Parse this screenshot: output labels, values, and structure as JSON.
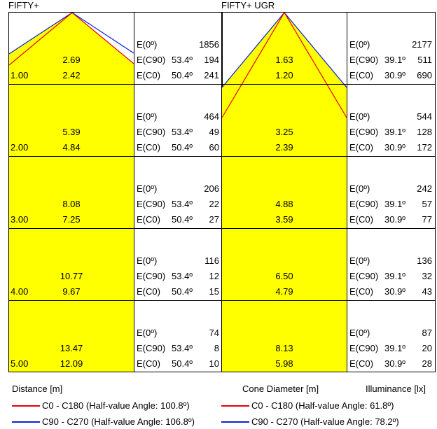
{
  "panels": [
    {
      "title": "FIFTY+",
      "rows": [
        {
          "distance": "1.00",
          "cone_c90": "2.69",
          "cone_c0": "2.42",
          "e0": "1856",
          "e_c90_angle": "53.4º",
          "e_c90": "194",
          "e_c0_angle": "50.4º",
          "e_c0": "241"
        },
        {
          "distance": "2.00",
          "cone_c90": "5.39",
          "cone_c0": "4.84",
          "e0": "464",
          "e_c90_angle": "53.4º",
          "e_c90": "49",
          "e_c0_angle": "50.4º",
          "e_c0": "60"
        },
        {
          "distance": "3.00",
          "cone_c90": "8.08",
          "cone_c0": "7.25",
          "e0": "206",
          "e_c90_angle": "53.4º",
          "e_c90": "22",
          "e_c0_angle": "50.4º",
          "e_c0": "27"
        },
        {
          "distance": "4.00",
          "cone_c90": "10.77",
          "cone_c0": "9.67",
          "e0": "116",
          "e_c90_angle": "53.4º",
          "e_c90": "12",
          "e_c0_angle": "50.4º",
          "e_c0": "15"
        },
        {
          "distance": "5.00",
          "cone_c90": "13.47",
          "cone_c0": "12.09",
          "e0": "74",
          "e_c90_angle": "53.4º",
          "e_c90": "8",
          "e_c0_angle": "50.4º",
          "e_c0": "10"
        }
      ]
    },
    {
      "title": "FIFTY+ UGR",
      "rows": [
        {
          "distance": "",
          "cone_c90": "1.63",
          "cone_c0": "1.20",
          "e0": "2177",
          "e_c90_angle": "39.1º",
          "e_c90": "511",
          "e_c0_angle": "30.9º",
          "e_c0": "690"
        },
        {
          "distance": "",
          "cone_c90": "3.25",
          "cone_c0": "2.39",
          "e0": "544",
          "e_c90_angle": "39.1º",
          "e_c90": "128",
          "e_c0_angle": "30.9º",
          "e_c0": "172"
        },
        {
          "distance": "",
          "cone_c90": "4.88",
          "cone_c0": "3.59",
          "e0": "242",
          "e_c90_angle": "39.1º",
          "e_c90": "57",
          "e_c0_angle": "30.9º",
          "e_c0": "77"
        },
        {
          "distance": "",
          "cone_c90": "6.50",
          "cone_c0": "4.79",
          "e0": "136",
          "e_c90_angle": "39.1º",
          "e_c90": "32",
          "e_c0_angle": "30.9º",
          "e_c0": "43"
        },
        {
          "distance": "",
          "cone_c90": "8.13",
          "cone_c0": "5.98",
          "e0": "87",
          "e_c90_angle": "39.1º",
          "e_c90": "20",
          "e_c0_angle": "30.9º",
          "e_c0": "28"
        }
      ]
    }
  ],
  "labels": {
    "e0": "E(0º)",
    "e_c90": "E(C90)",
    "e_c0": "E(C0)",
    "distance_axis": "Distance [m]",
    "cone_diameter": "Cone Diameter [m]",
    "illuminance": "Illuminance [lx]"
  },
  "legend": [
    {
      "label": "C0 - C180 (Half-value Angle: 100.8º)",
      "color": "#e8000b"
    },
    {
      "label": "C90 - C270 (Half-value Angle: 106.8º)",
      "color": "#0b22d6"
    },
    {
      "label": "C0 - C180 (Half-value Angle: 61.8º)",
      "color": "#e8000b"
    },
    {
      "label": "C90 - C270 (Half-value Angle: 78.2º)",
      "color": "#0b22d6"
    }
  ],
  "chart_data": {
    "type": "table",
    "cone_fill_color": "#ffff00",
    "c0_color": "#e8000b",
    "c90_color": "#0b22d6",
    "half_value_angles_deg": [
      {
        "panel": "FIFTY+",
        "c0": 100.8,
        "c90": 106.8
      },
      {
        "panel": "FIFTY+ UGR",
        "c0": 61.8,
        "c90": 78.2
      }
    ]
  }
}
